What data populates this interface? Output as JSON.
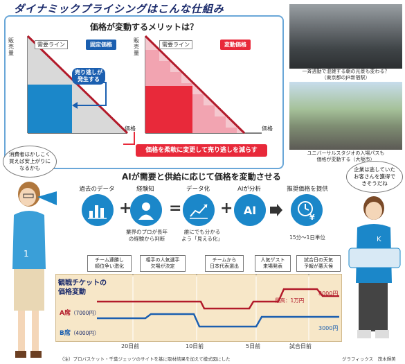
{
  "title": "ダイナミックプライシングはこんな仕組み",
  "merit": {
    "question": "価格が変動するメリットは？",
    "left": {
      "badge": "固定価格",
      "demand_line": "需要ライン",
      "y_axis": "販売量",
      "x_axis": "価格",
      "callout": "売り逃しが\n発生する"
    },
    "right": {
      "badge": "変動価格",
      "demand_line": "需要ライン",
      "y_axis": "販売量",
      "x_axis": "価格"
    },
    "banner": "価格を柔軟に変更して売り逃しを減らす"
  },
  "photos": [
    {
      "caption": "一斉週勤で混雑する朝の光景も変わる？\n（東京都のJR新宿駅）"
    },
    {
      "caption": "ユニバーサルスタジオの入場パスも\n価格が変動する（大阪市）"
    }
  ],
  "process": {
    "heading": "AIが需要と供給に応じて価格を変動させる",
    "steps": [
      {
        "name": "過去のデータ",
        "desc": "",
        "icon": "bar-chart-icon"
      },
      {
        "name": "経験知",
        "desc": "業界のプロが長年\nの経験から判断",
        "icon": "expert-icon"
      },
      {
        "name": "データ化",
        "desc": "誰にでも分かる\nよう「見える化」",
        "icon": "trend-icon"
      },
      {
        "name": "AIが分析",
        "desc": "",
        "icon": "brain-icon",
        "glyph": "AI"
      },
      {
        "name": "推奨価格を提供",
        "desc": "15分～1日単位",
        "icon": "clock-yen-icon"
      }
    ],
    "operators": [
      "+",
      "=",
      "+"
    ]
  },
  "bubbles": {
    "consumer": "消費者はかしこく\n買えば安上がりに\nなるかも",
    "business": "企業は逃していた\nお客さんを獲得で\nきそうだね"
  },
  "events": [
    "チーム連勝し\n順位争い激化",
    "相手の人気選手\n欠場が決定",
    "チームから\n日本代表選出",
    "人気ゲスト\n来場発表",
    "試合日の天気\n予報が悪天候"
  ],
  "chart_data": {
    "type": "line",
    "title": "観戦チケットの\n価格変動",
    "x_ticks": [
      "20日前",
      "10日前",
      "5日前",
      "試合日前"
    ],
    "series": [
      {
        "name": "A席",
        "label": "（7000円）",
        "start": 7000,
        "end": 8000,
        "end_label": "8000円",
        "color": "#b21a2a"
      },
      {
        "name": "B席",
        "label": "（4000円）",
        "start": 4000,
        "end": 3000,
        "end_label": "3000円",
        "color": "#1b5fb0"
      }
    ],
    "annotation": "最高：1万円",
    "max": 10000
  },
  "footer": {
    "note": "（注）プロバスケット・千葉ジェッツのサイトを基に取材結果を加えて模式図にした",
    "credit": "グラフィックス　茂木輝美"
  }
}
